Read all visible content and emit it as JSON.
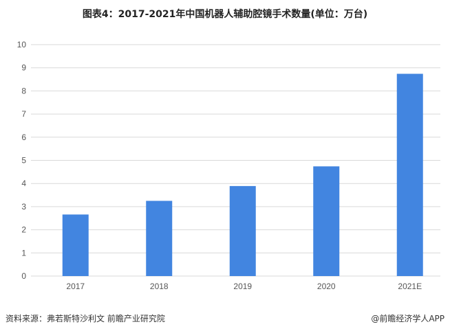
{
  "chart_data": {
    "type": "bar",
    "title": "图表4：2017-2021年中国机器人辅助腔镜手术数量(单位：万台)",
    "categories": [
      "2017",
      "2018",
      "2019",
      "2020",
      "2021E"
    ],
    "values": [
      2.66,
      3.25,
      3.89,
      4.74,
      8.74
    ],
    "ylim": [
      0,
      10
    ],
    "yticks": [
      "0",
      "1",
      "2",
      "3",
      "4",
      "5",
      "6",
      "7",
      "8",
      "9",
      "10"
    ],
    "grid": true,
    "bar_color": "#4285e0",
    "xlabel": "",
    "ylabel": ""
  },
  "footer": {
    "source": "资料来源：弗若斯特沙利文 前瞻产业研究院",
    "credit": "@前瞻经济学人APP"
  },
  "watermark": "前瞻产业研究院"
}
